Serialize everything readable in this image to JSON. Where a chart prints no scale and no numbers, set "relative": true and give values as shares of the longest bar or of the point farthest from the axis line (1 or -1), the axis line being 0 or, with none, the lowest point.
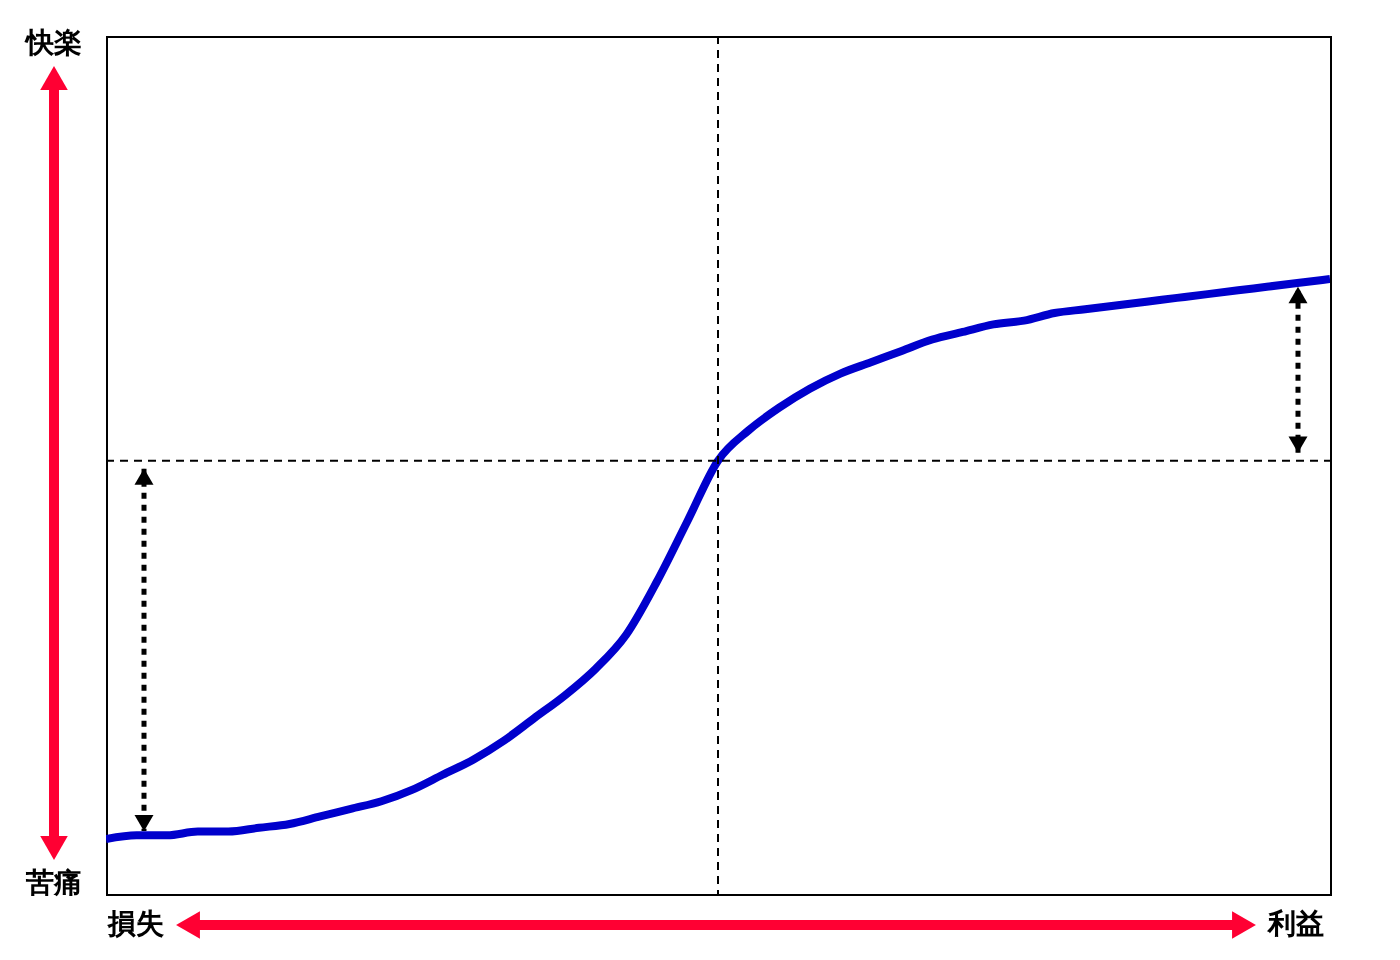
{
  "chart_data": {
    "type": "line",
    "relative": true,
    "categories": [
      null,
      null,
      null,
      null,
      null,
      null,
      null,
      null,
      null,
      null,
      null,
      null,
      null,
      null,
      null,
      null,
      null,
      null,
      null,
      null,
      null,
      null,
      null,
      null,
      null,
      null,
      null,
      null,
      null,
      null,
      null,
      null,
      null,
      null,
      null,
      null,
      null,
      null,
      null,
      null,
      null
    ],
    "series": [
      {
        "color": "#0000cc",
        "values": [
          -1.0,
          -0.99,
          -0.99,
          -0.98,
          -0.98,
          -0.97,
          -0.96,
          -0.94,
          -0.92,
          -0.9,
          -0.87,
          -0.83,
          -0.79,
          -0.74,
          -0.68,
          -0.62,
          -0.55,
          -0.46,
          -0.32,
          -0.16,
          0.0,
          0.08,
          0.14,
          0.19,
          0.23,
          0.26,
          0.29,
          0.32,
          0.34,
          0.36,
          0.37,
          0.39,
          0.4,
          0.41,
          0.42,
          0.43,
          0.44,
          0.45,
          0.46,
          0.47,
          0.48
        ]
      }
    ],
    "ref_lines": [
      {
        "axis": "y",
        "value": 0,
        "color": "#000000",
        "line_style": "dashed"
      }
    ],
    "annotations": [
      "快楽",
      "苦痛",
      "損失",
      "利益"
    ],
    "line_style": "solid"
  }
}
